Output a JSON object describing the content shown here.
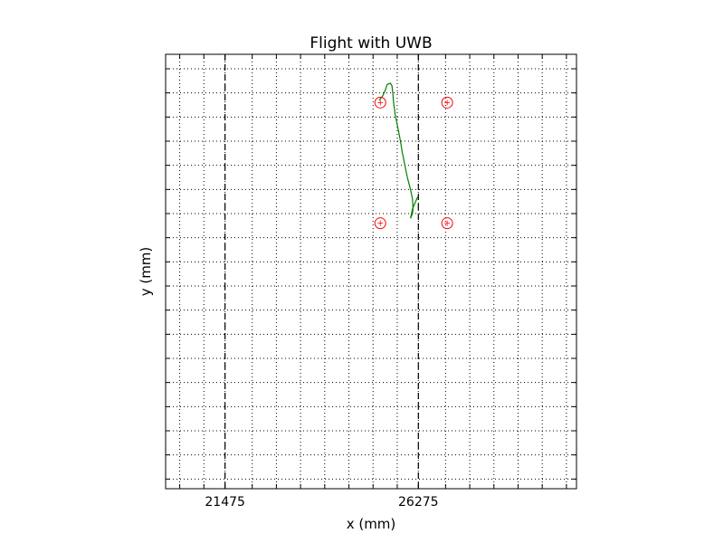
{
  "chart_data": {
    "type": "line",
    "title": "Flight with UWB",
    "xlabel": "x (mm)",
    "ylabel": "y (mm)",
    "xlim": [
      20000,
      30200
    ],
    "ylim": [
      -8400,
      9600
    ],
    "xticks": [
      21475,
      26275
    ],
    "grid": true,
    "grid_style": "dotted",
    "x_grid_values": [
      20350,
      20950,
      21475,
      22150,
      22750,
      23350,
      23950,
      24550,
      25150,
      25750,
      26275,
      26950,
      27550,
      28150,
      28750,
      29350,
      29950
    ],
    "y_grid_values": [
      9000,
      8000,
      7000,
      6000,
      5000,
      4000,
      3000,
      2000,
      1000,
      0,
      -1000,
      -2000,
      -3000,
      -4000,
      -5000,
      -6000,
      -7000,
      -8000
    ],
    "vertical_lines": [
      {
        "x": 21475,
        "style": "dashed",
        "color": "#000000"
      },
      {
        "x": 26275,
        "style": "dashed",
        "color": "#000000"
      }
    ],
    "series": [
      {
        "type": "line",
        "color": "#008000",
        "points": [
          [
            25300,
            7700
          ],
          [
            25380,
            7850
          ],
          [
            25450,
            8100
          ],
          [
            25500,
            8350
          ],
          [
            25580,
            8400
          ],
          [
            25620,
            8300
          ],
          [
            25640,
            8000
          ],
          [
            25660,
            7600
          ],
          [
            25700,
            7100
          ],
          [
            25760,
            6600
          ],
          [
            25820,
            6100
          ],
          [
            25880,
            5500
          ],
          [
            25940,
            5000
          ],
          [
            26000,
            4500
          ],
          [
            26080,
            4000
          ],
          [
            26130,
            3600
          ],
          [
            26140,
            3200
          ],
          [
            26130,
            3000
          ],
          [
            26080,
            2800
          ],
          [
            26130,
            3200
          ],
          [
            26220,
            3550
          ],
          [
            26260,
            3700
          ]
        ]
      },
      {
        "type": "scatter",
        "marker": "circle-plus",
        "color": "#ff0000",
        "points": [
          [
            25330,
            7600
          ],
          [
            26990,
            7600
          ],
          [
            25330,
            2600
          ],
          [
            26990,
            2600
          ]
        ]
      }
    ]
  }
}
